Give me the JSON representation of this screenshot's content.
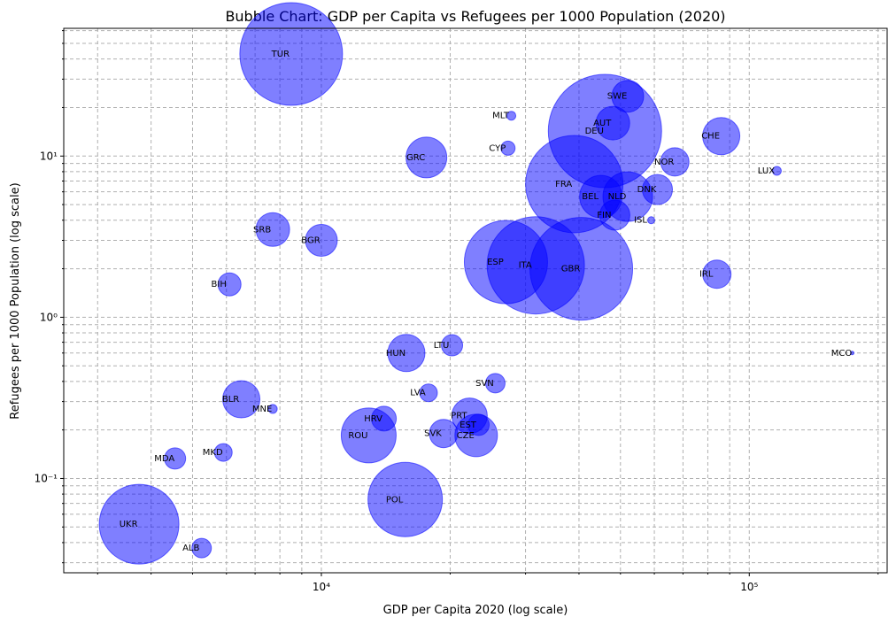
{
  "chart_data": {
    "type": "scatter",
    "subtype": "bubble",
    "title": "Bubble Chart: GDP per Capita vs Refugees per 1000 Population (2020)",
    "xlabel": "GDP per Capita 2020 (log scale)",
    "ylabel": "Refugees per 1000 Population (log scale)",
    "x_scale": "log",
    "y_scale": "log",
    "xlim": [
      2500,
      210000
    ],
    "ylim": [
      0.026,
      62
    ],
    "x_major_ticks": [
      {
        "value": 10000,
        "label": "10⁴"
      },
      {
        "value": 100000,
        "label": "10⁵"
      }
    ],
    "y_major_ticks": [
      {
        "value": 0.1,
        "label": "10⁻¹"
      },
      {
        "value": 1,
        "label": "10⁰"
      },
      {
        "value": 10,
        "label": "10¹"
      }
    ],
    "grid": true,
    "grid_style": "dashed",
    "bubble_color": "#0000ff",
    "bubble_alpha": 0.5,
    "points": [
      {
        "label": "TUR",
        "x": 8500,
        "y": 43,
        "r": 58
      },
      {
        "label": "MLT",
        "x": 27800,
        "y": 17.8,
        "r": 5
      },
      {
        "label": "CYP",
        "x": 27300,
        "y": 11.2,
        "r": 8
      },
      {
        "label": "SWE",
        "x": 52000,
        "y": 23.5,
        "r": 18
      },
      {
        "label": "AUT",
        "x": 48000,
        "y": 16.0,
        "r": 19
      },
      {
        "label": "DEU",
        "x": 46000,
        "y": 14.3,
        "r": 64
      },
      {
        "label": "CHE",
        "x": 86000,
        "y": 13.3,
        "r": 21
      },
      {
        "label": "GRC",
        "x": 17600,
        "y": 9.8,
        "r": 23
      },
      {
        "label": "NOR",
        "x": 67000,
        "y": 9.2,
        "r": 16
      },
      {
        "label": "LUX",
        "x": 116000,
        "y": 8.1,
        "r": 5
      },
      {
        "label": "FRA",
        "x": 39000,
        "y": 6.7,
        "r": 55
      },
      {
        "label": "DNK",
        "x": 61000,
        "y": 6.2,
        "r": 17
      },
      {
        "label": "BEL",
        "x": 45000,
        "y": 5.6,
        "r": 24
      },
      {
        "label": "NLD",
        "x": 52000,
        "y": 5.6,
        "r": 28
      },
      {
        "label": "FIN",
        "x": 48500,
        "y": 4.3,
        "r": 17
      },
      {
        "label": "ISL",
        "x": 59000,
        "y": 4.0,
        "r": 4
      },
      {
        "label": "SRB",
        "x": 7700,
        "y": 3.5,
        "r": 19
      },
      {
        "label": "BGR",
        "x": 10000,
        "y": 3.0,
        "r": 18
      },
      {
        "label": "ESP",
        "x": 27000,
        "y": 2.2,
        "r": 47
      },
      {
        "label": "ITA",
        "x": 31700,
        "y": 2.1,
        "r": 55
      },
      {
        "label": "GBR",
        "x": 40500,
        "y": 2.0,
        "r": 58
      },
      {
        "label": "IRL",
        "x": 84000,
        "y": 1.85,
        "r": 16
      },
      {
        "label": "BIH",
        "x": 6100,
        "y": 1.6,
        "r": 13
      },
      {
        "label": "LTU",
        "x": 20200,
        "y": 0.67,
        "r": 12
      },
      {
        "label": "HUN",
        "x": 15800,
        "y": 0.6,
        "r": 21
      },
      {
        "label": "MCO",
        "x": 174000,
        "y": 0.6,
        "r": 2
      },
      {
        "label": "SVN",
        "x": 25500,
        "y": 0.39,
        "r": 11
      },
      {
        "label": "LVA",
        "x": 17800,
        "y": 0.34,
        "r": 10
      },
      {
        "label": "BLR",
        "x": 6500,
        "y": 0.31,
        "r": 21
      },
      {
        "label": "MNE",
        "x": 7700,
        "y": 0.27,
        "r": 5
      },
      {
        "label": "PRT",
        "x": 22200,
        "y": 0.245,
        "r": 20
      },
      {
        "label": "HRV",
        "x": 14000,
        "y": 0.235,
        "r": 14
      },
      {
        "label": "EST",
        "x": 23300,
        "y": 0.215,
        "r": 12
      },
      {
        "label": "ROU",
        "x": 12900,
        "y": 0.185,
        "r": 31
      },
      {
        "label": "CZE",
        "x": 23000,
        "y": 0.185,
        "r": 24
      },
      {
        "label": "SVK",
        "x": 19300,
        "y": 0.19,
        "r": 16
      },
      {
        "label": "MDA",
        "x": 4550,
        "y": 0.133,
        "r": 12
      },
      {
        "label": "MKD",
        "x": 5900,
        "y": 0.145,
        "r": 10
      },
      {
        "label": "POL",
        "x": 15700,
        "y": 0.074,
        "r": 42
      },
      {
        "label": "UKR",
        "x": 3750,
        "y": 0.052,
        "r": 45
      },
      {
        "label": "ALB",
        "x": 5250,
        "y": 0.037,
        "r": 11
      }
    ]
  }
}
